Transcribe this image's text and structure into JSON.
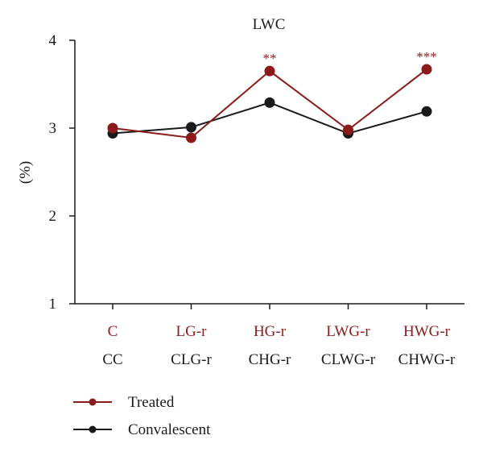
{
  "chart_data": {
    "type": "line",
    "title": "LWC",
    "ylabel": "(%)",
    "xlabel": "",
    "ylim": [
      1,
      4
    ],
    "yticks": [
      1,
      2,
      3,
      4
    ],
    "grid": false,
    "legend_placement": "bottom-left",
    "categories_treated": [
      "C",
      "LG-r",
      "HG-r",
      "LWG-r",
      "HWG-r"
    ],
    "categories_convalescent": [
      "CC",
      "CLG-r",
      "CHG-r",
      "CLWG-r",
      "CHWG-r"
    ],
    "significance": [
      "",
      "",
      "**",
      "",
      "***"
    ],
    "series": [
      {
        "name": "Treated",
        "color": "#8b1a1a",
        "values": [
          3.0,
          2.89,
          3.65,
          2.98,
          3.67
        ]
      },
      {
        "name": "Convalescent",
        "color": "#1a1a1a",
        "values": [
          2.94,
          3.01,
          3.29,
          2.94,
          3.19
        ]
      }
    ]
  }
}
